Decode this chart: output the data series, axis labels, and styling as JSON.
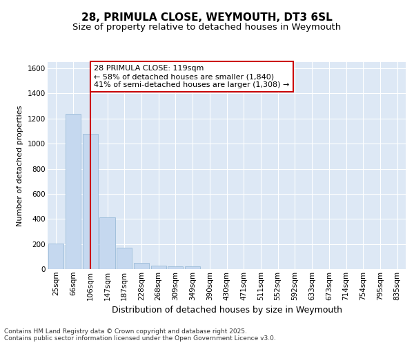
{
  "title": "28, PRIMULA CLOSE, WEYMOUTH, DT3 6SL",
  "subtitle": "Size of property relative to detached houses in Weymouth",
  "xlabel": "Distribution of detached houses by size in Weymouth",
  "ylabel": "Number of detached properties",
  "categories": [
    "25sqm",
    "66sqm",
    "106sqm",
    "147sqm",
    "187sqm",
    "228sqm",
    "268sqm",
    "309sqm",
    "349sqm",
    "390sqm",
    "430sqm",
    "471sqm",
    "511sqm",
    "552sqm",
    "592sqm",
    "633sqm",
    "673sqm",
    "714sqm",
    "754sqm",
    "795sqm",
    "835sqm"
  ],
  "values": [
    205,
    1235,
    1080,
    415,
    170,
    50,
    25,
    20,
    20,
    0,
    0,
    0,
    0,
    0,
    0,
    0,
    0,
    0,
    0,
    0,
    0
  ],
  "bar_color": "#c5d8ef",
  "bar_edge_color": "#9bbcd8",
  "vline_x": 2.0,
  "vline_color": "#cc0000",
  "annotation_box_text": "28 PRIMULA CLOSE: 119sqm\n← 58% of detached houses are smaller (1,840)\n41% of semi-detached houses are larger (1,308) →",
  "annotation_box_color": "#cc0000",
  "annotation_box_fill": "#ffffff",
  "footer_line1": "Contains HM Land Registry data © Crown copyright and database right 2025.",
  "footer_line2": "Contains public sector information licensed under the Open Government Licence v3.0.",
  "ylim": [
    0,
    1650
  ],
  "yticks": [
    0,
    200,
    400,
    600,
    800,
    1000,
    1200,
    1400,
    1600
  ],
  "background_color": "#dde8f5",
  "grid_color": "#ffffff",
  "fig_bg_color": "#ffffff",
  "title_fontsize": 11,
  "subtitle_fontsize": 9.5,
  "xlabel_fontsize": 9,
  "ylabel_fontsize": 8,
  "tick_fontsize": 7.5,
  "footer_fontsize": 6.5,
  "annot_fontsize": 8
}
